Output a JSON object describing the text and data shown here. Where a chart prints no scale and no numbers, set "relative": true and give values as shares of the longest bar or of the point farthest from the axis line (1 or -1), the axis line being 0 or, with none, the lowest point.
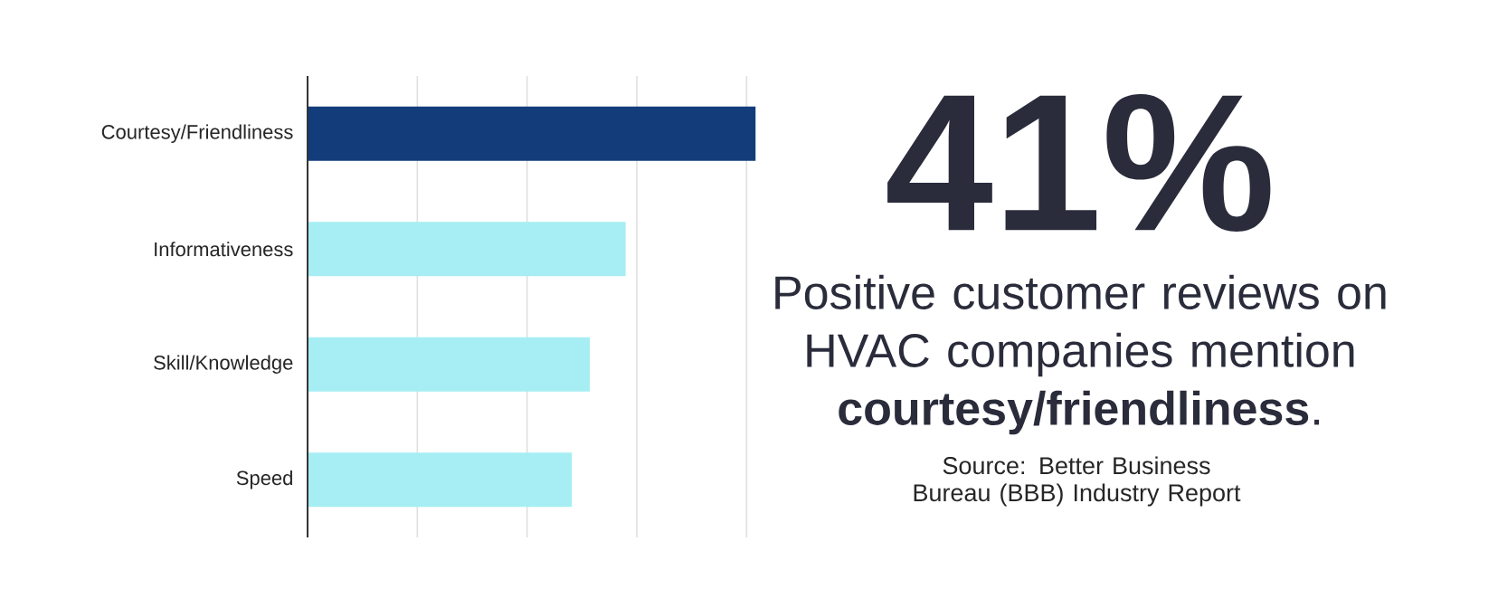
{
  "chart_data": {
    "type": "bar",
    "orientation": "horizontal",
    "relative": true,
    "categories": [
      "Courtesy/Friendliness",
      "Informativeness",
      "Skill/Knowledge",
      "Speed"
    ],
    "values": [
      1,
      0.71,
      0.63,
      0.59
    ],
    "colors": [
      "#123d7a",
      "#a6eef3",
      "#a6eef3",
      "#a6eef3"
    ],
    "grid": "x",
    "annotations": [
      "41%",
      "Positive customer reviews on HVAC companies mention **courtesy/friendliness**.",
      "Source: Better Business Bureau (BBB) Industry Report"
    ]
  }
}
